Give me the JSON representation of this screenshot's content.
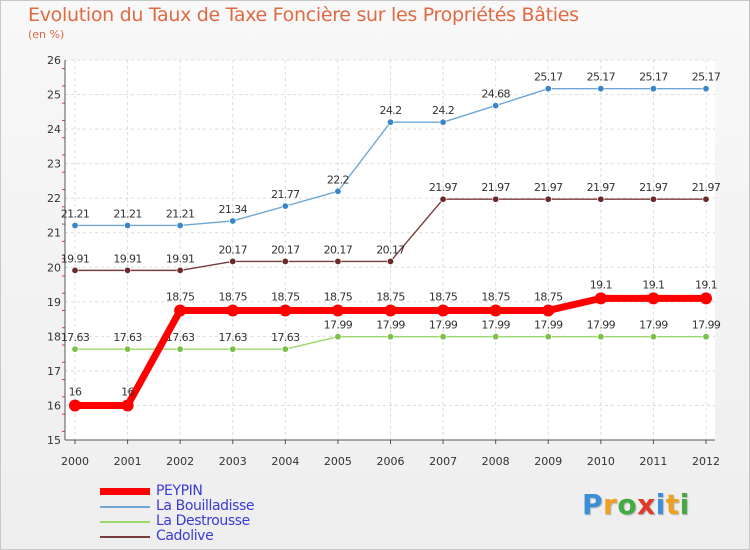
{
  "chart_data": {
    "type": "line",
    "title": "Evolution du Taux de Taxe Foncière sur les Propriétés Bâties",
    "ylabel": "(en %)",
    "xlabel": "",
    "ylim": [
      15,
      26
    ],
    "yticks": [
      "15",
      "16",
      "17",
      "18",
      "19",
      "20",
      "21",
      "22",
      "23",
      "24",
      "25",
      "26"
    ],
    "categories": [
      "2000",
      "2001",
      "2002",
      "2003",
      "2004",
      "2005",
      "2006",
      "2007",
      "2008",
      "2009",
      "2010",
      "2011",
      "2012"
    ],
    "grid": true,
    "series": [
      {
        "name": "La Bouilladisse",
        "color": "#6fa6d6",
        "marker_color": "#3a86c8",
        "values": [
          21.21,
          21.21,
          21.21,
          21.34,
          21.77,
          22.2,
          24.2,
          24.2,
          24.68,
          25.17,
          25.17,
          25.17,
          25.17
        ],
        "labels": [
          "21.21",
          "21.21",
          "21.21",
          "21.34",
          "21.77",
          "22.2",
          "24.2",
          "24.2",
          "24.68",
          "25.17",
          "25.17",
          "25.17",
          "25.17"
        ]
      },
      {
        "name": "Cadolive",
        "color": "#7a3d3d",
        "marker_color": "#6b2a2a",
        "values": [
          19.91,
          19.91,
          19.91,
          20.17,
          20.17,
          20.17,
          20.17,
          21.97,
          21.97,
          21.97,
          21.97,
          21.97,
          21.97
        ],
        "labels": [
          "19.91",
          "19.91",
          "19.91",
          "20.17",
          "20.17",
          "20.17",
          "20.17",
          "21.97",
          "21.97",
          "21.97",
          "21.97",
          "21.97",
          "21.97"
        ]
      },
      {
        "name": "La Destrousse",
        "color": "#9ad86a",
        "marker_color": "#7cc04a",
        "values": [
          17.63,
          17.63,
          17.63,
          17.63,
          17.63,
          17.99,
          17.99,
          17.99,
          17.99,
          17.99,
          17.99,
          17.99,
          17.99
        ],
        "labels": [
          "17.63",
          "17.63",
          "17.63",
          "17.63",
          "17.63",
          "17.99",
          "17.99",
          "17.99",
          "17.99",
          "17.99",
          "17.99",
          "17.99",
          "17.99"
        ]
      },
      {
        "name": "PEYPIN",
        "color": "#ff0000",
        "marker_color": "#ff0000",
        "values": [
          16,
          16,
          18.75,
          18.75,
          18.75,
          18.75,
          18.75,
          18.75,
          18.75,
          18.75,
          19.1,
          19.1,
          19.1
        ],
        "labels": [
          "16",
          "16",
          "18.75",
          "18.75",
          "18.75",
          "18.75",
          "18.75",
          "18.75",
          "18.75",
          "18.75",
          "19.1",
          "19.1",
          "19.1"
        ]
      }
    ],
    "legend_order": [
      "PEYPIN",
      "La Bouilladisse",
      "La Destrousse",
      "Cadolive"
    ]
  },
  "legend": [
    {
      "label": "PEYPIN",
      "color": "#ff0000"
    },
    {
      "label": "La Bouilladisse",
      "color": "#6fa6d6"
    },
    {
      "label": "La Destrousse",
      "color": "#9ad86a"
    },
    {
      "label": "Cadolive",
      "color": "#7a3d3d"
    }
  ],
  "brand": {
    "letters": [
      "P",
      "r",
      "o",
      "x",
      "i",
      "t",
      "i"
    ],
    "colors": [
      "#3a8fd8",
      "#f0a020",
      "#44aa44",
      "#e03a2a",
      "#3a8fd8",
      "#f0a020",
      "#44aa44"
    ]
  }
}
